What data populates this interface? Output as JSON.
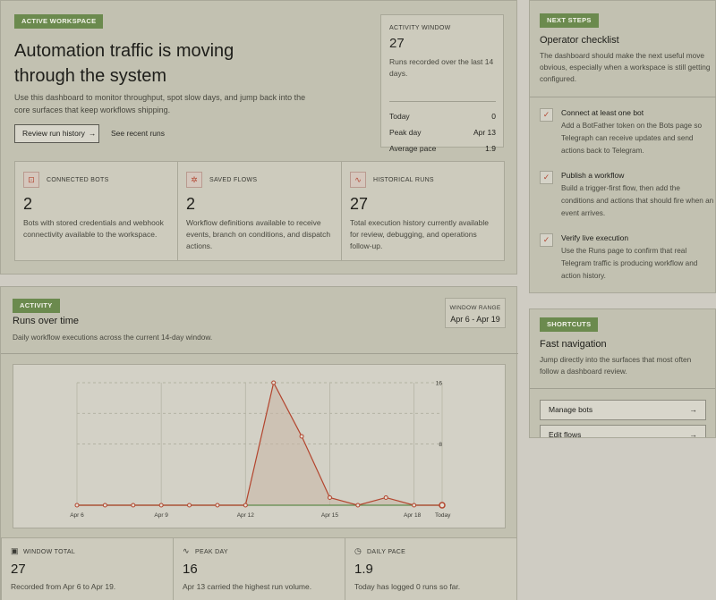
{
  "hero": {
    "badge": "ACTIVE WORKSPACE",
    "title": "Automation traffic is moving through the system",
    "description": "Use this dashboard to monitor throughput, spot slow days, and jump back into the core surfaces that keep workflows shipping.",
    "primary_button": "Review run history",
    "primary_button_icon": "→",
    "secondary_link": "See recent runs"
  },
  "activity_window": {
    "label": "ACTIVITY WINDOW",
    "count": "27",
    "description": "Runs recorded over the last 14 days.",
    "rows": [
      {
        "label": "Today",
        "value": "0"
      },
      {
        "label": "Peak day",
        "value": "Apr 13"
      },
      {
        "label": "Average pace",
        "value": "1.9"
      }
    ]
  },
  "stats": [
    {
      "icon": "bot-icon",
      "glyph": "⊡",
      "label": "CONNECTED BOTS",
      "value": "2",
      "description": "Bots with stored credentials and webhook connectivity available to the workspace."
    },
    {
      "icon": "sparkle-icon",
      "glyph": "✲",
      "label": "SAVED FLOWS",
      "value": "2",
      "description": "Workflow definitions available to receive events, branch on conditions, and dispatch actions."
    },
    {
      "icon": "pulse-icon",
      "glyph": "∿",
      "label": "HISTORICAL RUNS",
      "value": "27",
      "description": "Total execution history currently available for review, debugging, and operations follow-up."
    }
  ],
  "next_steps": {
    "badge": "NEXT STEPS",
    "title": "Operator checklist",
    "description": "The dashboard should make the next useful move obvious, especially when a workspace is still getting configured.",
    "items": [
      {
        "title": "Connect at least one bot",
        "text": "Add a BotFather token on the Bots page so Telegraph can receive updates and send actions back to Telegram."
      },
      {
        "title": "Publish a workflow",
        "text": "Build a trigger-first flow, then add the conditions and actions that should fire when an event arrives."
      },
      {
        "title": "Verify live execution",
        "text": "Use the Runs page to confirm that real Telegram traffic is producing workflow and action history."
      }
    ]
  },
  "shortcuts": {
    "badge": "SHORTCUTS",
    "title": "Fast navigation",
    "description": "Jump directly into the surfaces that most often follow a dashboard review.",
    "buttons": [
      {
        "label": "Manage bots",
        "icon": "→"
      },
      {
        "label": "Edit flows",
        "icon": "→"
      }
    ]
  },
  "activity": {
    "badge": "ACTIVITY",
    "title": "Runs over time",
    "description": "Daily workflow executions across the current 14-day window.",
    "window_range_label": "WINDOW RANGE",
    "window_range_value": "Apr 6 - Apr 19"
  },
  "chart_data": {
    "type": "line",
    "x": [
      "Apr 6",
      "Apr 7",
      "Apr 8",
      "Apr 9",
      "Apr 10",
      "Apr 11",
      "Apr 12",
      "Apr 13",
      "Apr 14",
      "Apr 15",
      "Apr 16",
      "Apr 17",
      "Apr 18",
      "Apr 19"
    ],
    "x_tick_labels": [
      "Apr 6",
      "Apr 9",
      "Apr 12",
      "Apr 15",
      "Apr 18",
      "Today"
    ],
    "x_tick_indices": [
      0,
      3,
      6,
      9,
      12,
      13
    ],
    "y_tick_labels": [
      "16",
      "8"
    ],
    "y_tick_values": [
      16,
      8
    ],
    "ylim": [
      0,
      16
    ],
    "series": [
      {
        "values": [
          0,
          0,
          0,
          0,
          0,
          0,
          0,
          16,
          9,
          1,
          0,
          1,
          0,
          0
        ]
      }
    ],
    "colors": {
      "line": "#b3452e",
      "area": "#c9b7a6",
      "zero_line": "#5f8a4a"
    },
    "grid": true
  },
  "footer_stats": [
    {
      "icon": "calendar-icon",
      "glyph": "▣",
      "label": "WINDOW TOTAL",
      "value": "27",
      "description": "Recorded from Apr 6 to Apr 19."
    },
    {
      "icon": "pulse-icon",
      "glyph": "∿",
      "label": "PEAK DAY",
      "value": "16",
      "description": "Apr 13 carried the highest run volume."
    },
    {
      "icon": "clock-icon",
      "glyph": "◷",
      "label": "DAILY PACE",
      "value": "1.9",
      "description": "Today has logged 0 runs so far."
    }
  ]
}
